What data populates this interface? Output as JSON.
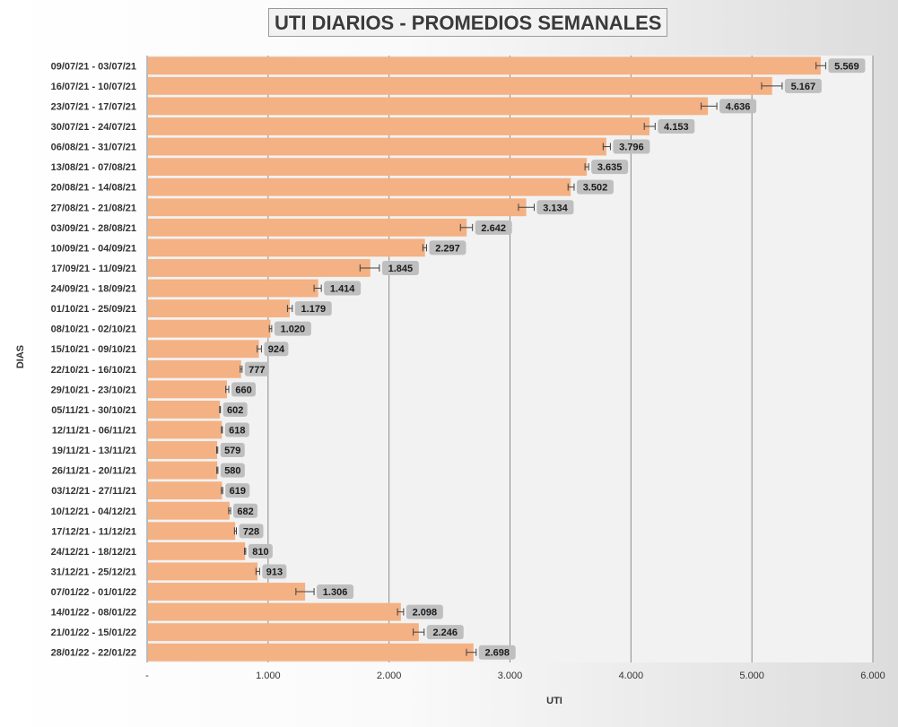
{
  "chart_data": {
    "type": "bar",
    "orientation": "horizontal",
    "title": "UTI DIARIOS - PROMEDIOS SEMANALES",
    "xlabel": "UTI",
    "ylabel": "DIAS",
    "xlim": [
      0,
      6000
    ],
    "x_tick_values": [
      0,
      1000,
      2000,
      3000,
      4000,
      5000,
      6000
    ],
    "x_tick_labels": [
      "-",
      "1.000",
      "2.000",
      "3.000",
      "4.000",
      "5.000",
      "6.000"
    ],
    "grid": "vertical",
    "legend": "none",
    "error_bars": true,
    "bar_color": "#F4B183",
    "plot_background": "#F2F2F2",
    "label_background": "#BFBFBF",
    "categories": [
      "09/07/21 - 03/07/21",
      "16/07/21 - 10/07/21",
      "23/07/21 - 17/07/21",
      "30/07/21 - 24/07/21",
      "06/08/21 - 31/07/21",
      "13/08/21 - 07/08/21",
      "20/08/21 - 14/08/21",
      "27/08/21 - 21/08/21",
      "03/09/21 - 28/08/21",
      "10/09/21 - 04/09/21",
      "17/09/21 - 11/09/21",
      "24/09/21 - 18/09/21",
      "01/10/21 - 25/09/21",
      "08/10/21 - 02/10/21",
      "15/10/21 - 09/10/21",
      "22/10/21 - 16/10/21",
      "29/10/21 - 23/10/21",
      "05/11/21 - 30/10/21",
      "12/11/21 - 06/11/21",
      "19/11/21 - 13/11/21",
      "26/11/21 - 20/11/21",
      "03/12/21 - 27/11/21",
      "10/12/21 - 04/12/21",
      "17/12/21 - 11/12/21",
      "24/12/21 - 18/12/21",
      "31/12/21 - 25/12/21",
      "07/01/22 - 01/01/22",
      "14/01/22 - 08/01/22",
      "21/01/22 - 15/01/22",
      "28/01/22 - 22/01/22"
    ],
    "values": [
      5569,
      5167,
      4636,
      4153,
      3796,
      3635,
      3502,
      3134,
      2642,
      2297,
      1845,
      1414,
      1179,
      1020,
      924,
      777,
      660,
      602,
      618,
      579,
      580,
      619,
      682,
      728,
      810,
      913,
      1306,
      2098,
      2246,
      2698
    ],
    "value_labels": [
      "5.569",
      "5.167",
      "4.636",
      "4.153",
      "3.796",
      "3.635",
      "3.502",
      "3.134",
      "2.642",
      "2.297",
      "1.845",
      "1.414",
      "1.179",
      "1.020",
      "924",
      "777",
      "660",
      "602",
      "618",
      "579",
      "580",
      "619",
      "682",
      "728",
      "810",
      "913",
      "1.306",
      "2.098",
      "2.246",
      "2.698"
    ],
    "error_low": [
      5530,
      5080,
      4580,
      4110,
      3770,
      3620,
      3480,
      3070,
      2590,
      2280,
      1760,
      1380,
      1160,
      1010,
      910,
      770,
      650,
      600,
      615,
      575,
      576,
      614,
      674,
      722,
      805,
      900,
      1230,
      2070,
      2200,
      2640
    ],
    "error_high": [
      5610,
      5250,
      4710,
      4200,
      3830,
      3650,
      3530,
      3200,
      2690,
      2310,
      1920,
      1440,
      1200,
      1030,
      945,
      785,
      675,
      606,
      622,
      584,
      585,
      625,
      690,
      738,
      815,
      930,
      1380,
      2120,
      2290,
      2720
    ]
  }
}
